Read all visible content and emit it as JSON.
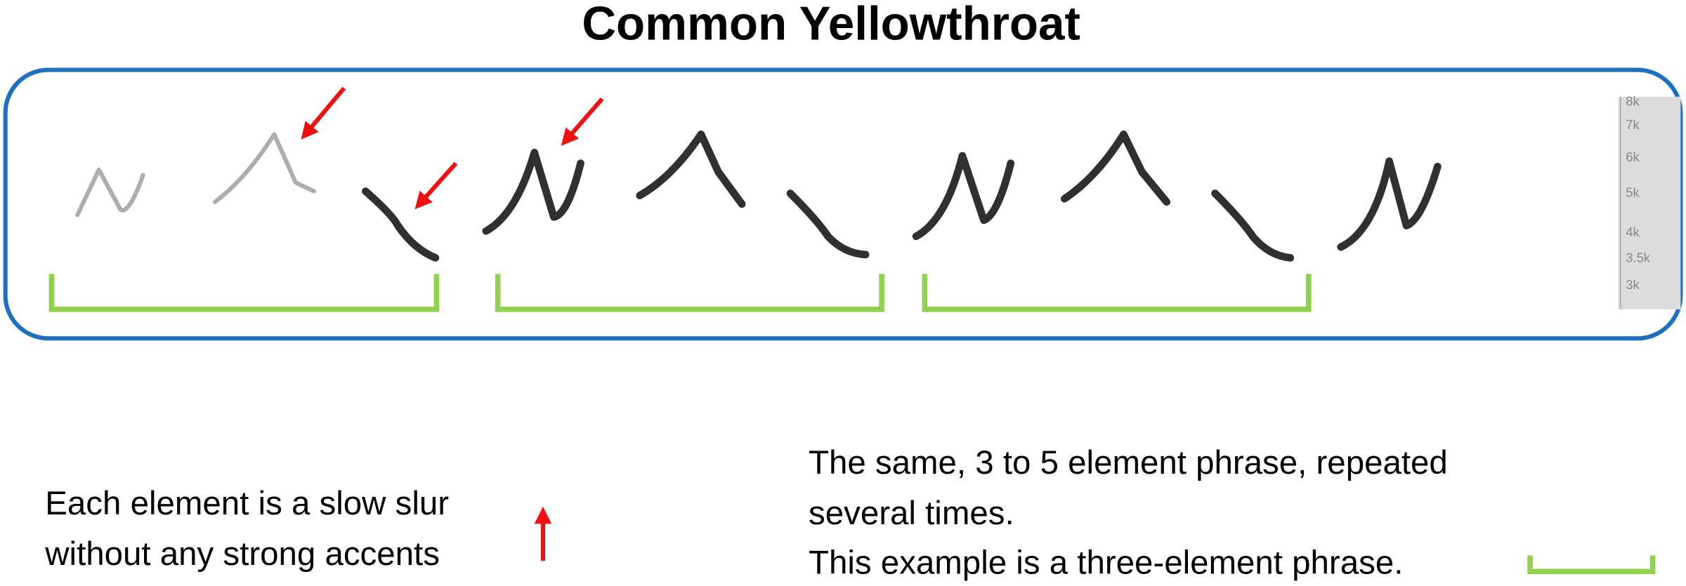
{
  "title": "Common Yellowthroat",
  "spectrogram": {
    "frequency_labels": [
      "8k",
      "7k",
      "6k",
      "5k",
      "4k",
      "3.5k",
      "3k"
    ]
  },
  "notes": {
    "elements": [
      "Each element is a slow slur",
      "without any strong accents"
    ],
    "phrases": [
      "The same, 3 to 5 element phrase, repeated",
      "several times.",
      "This example is a three-element phrase."
    ]
  }
}
